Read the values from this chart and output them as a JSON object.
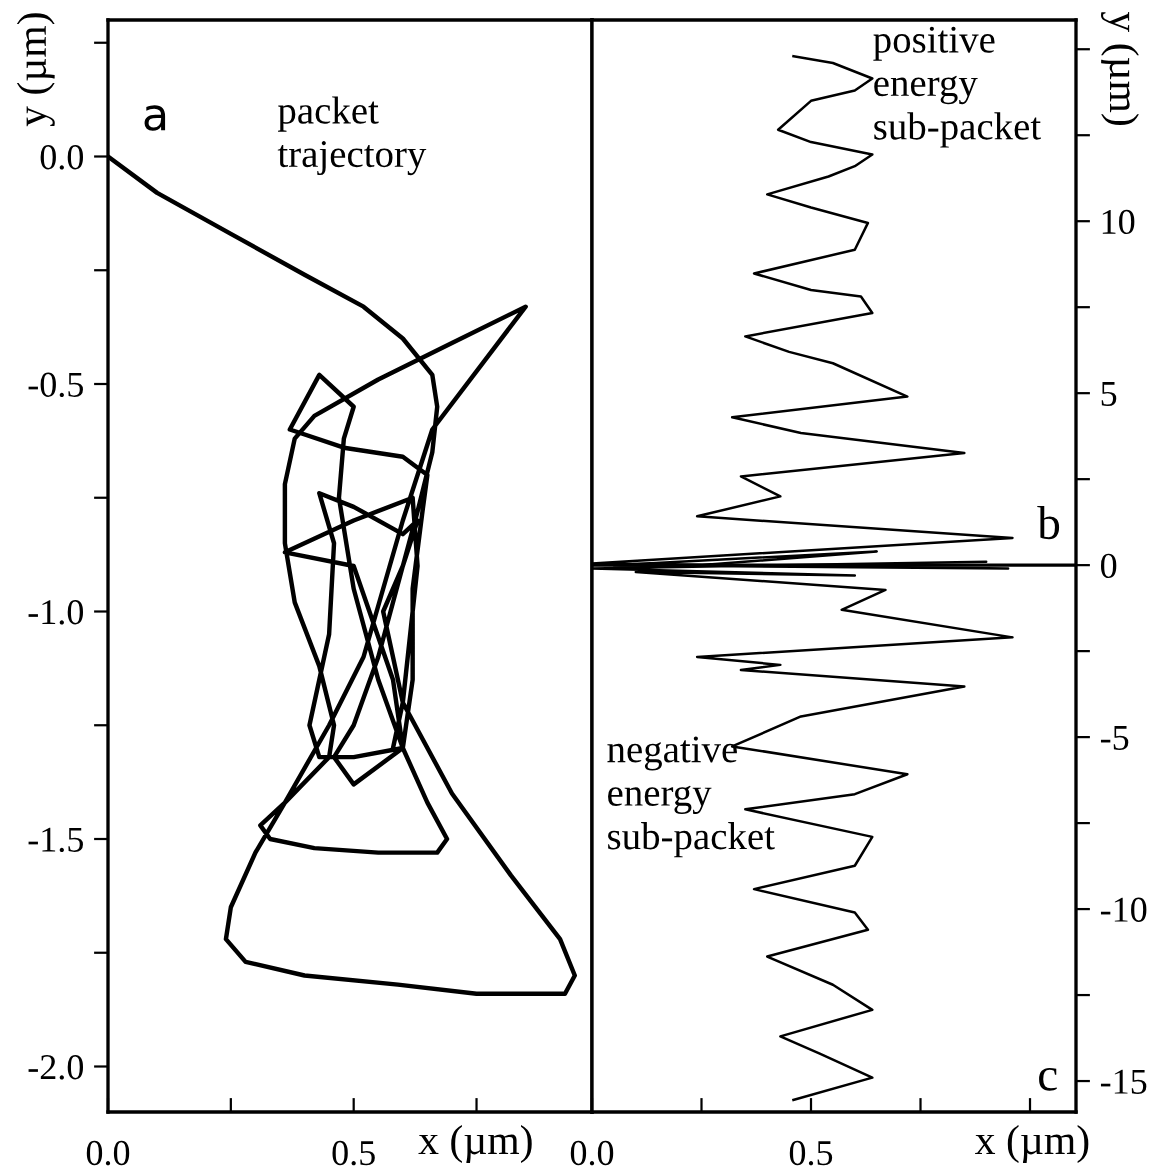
{
  "chart_data": [
    {
      "type": "line",
      "xlabel": "x (µm)",
      "ylabel": "y (µm)",
      "xlim": [
        0,
        0.985
      ],
      "ylim": [
        -2.1,
        0.3
      ],
      "xticks": [
        {
          "value": 0.0,
          "label": "0.0"
        },
        {
          "value": 0.25,
          "label": null
        },
        {
          "value": 0.5,
          "label": "0.5"
        },
        {
          "value": 0.75,
          "label": null
        }
      ],
      "yticks": [
        {
          "value": -2.0,
          "label": "-2.0"
        },
        {
          "value": -1.75,
          "label": null
        },
        {
          "value": -1.5,
          "label": "-1.5"
        },
        {
          "value": -1.25,
          "label": null
        },
        {
          "value": -1.0,
          "label": "-1.0"
        },
        {
          "value": -0.75,
          "label": null
        },
        {
          "value": -0.5,
          "label": "-0.5"
        },
        {
          "value": -0.25,
          "label": null
        },
        {
          "value": 0.0,
          "label": "0.0"
        },
        {
          "value": 0.25,
          "label": null
        }
      ],
      "annotations": [
        "a",
        "packet\ntrajectory"
      ],
      "series": [
        {
          "color": "#000000",
          "x": [
            0,
            0.1,
            0.25,
            0.4,
            0.52,
            0.6,
            0.66,
            0.67,
            0.66,
            0.63,
            0.6,
            0.56,
            0.6,
            0.7,
            0.82,
            0.92,
            0.95,
            0.93,
            0.75,
            0.59,
            0.4,
            0.28,
            0.24,
            0.25,
            0.3,
            0.36,
            0.45,
            0.52,
            0.56,
            0.6,
            0.66,
            0.85,
            0.7,
            0.55,
            0.42,
            0.38,
            0.36,
            0.36,
            0.38,
            0.43,
            0.46,
            0.45,
            0.36,
            0.31,
            0.33,
            0.42,
            0.55,
            0.67,
            0.69,
            0.65,
            0.6,
            0.55,
            0.5,
            0.47,
            0.48,
            0.5,
            0.43,
            0.37,
            0.48,
            0.6,
            0.65,
            0.64,
            0.62,
            0.62,
            0.6,
            0.5,
            0.43,
            0.41,
            0.45,
            0.46,
            0.43,
            0.5,
            0.6,
            0.63,
            0.6,
            0.55,
            0.5,
            0.46,
            0.5,
            0.6,
            0.58,
            0.5,
            0.36,
            0.5,
            0.62,
            0.63,
            0.6,
            0.58
          ],
          "values": [
            0,
            -0.08,
            -0.17,
            -0.26,
            -0.33,
            -0.4,
            -0.48,
            -0.55,
            -0.65,
            -0.78,
            -0.9,
            -1.0,
            -1.2,
            -1.4,
            -1.58,
            -1.72,
            -1.8,
            -1.84,
            -1.84,
            -1.82,
            -1.8,
            -1.77,
            -1.72,
            -1.65,
            -1.53,
            -1.42,
            -1.25,
            -1.1,
            -0.95,
            -0.8,
            -0.6,
            -0.33,
            -0.41,
            -0.49,
            -0.57,
            -0.62,
            -0.72,
            -0.85,
            -0.98,
            -1.12,
            -1.25,
            -1.32,
            -1.42,
            -1.47,
            -1.5,
            -1.52,
            -1.53,
            -1.53,
            -1.5,
            -1.42,
            -1.3,
            -1.15,
            -0.95,
            -0.75,
            -0.62,
            -0.55,
            -0.48,
            -0.6,
            -0.64,
            -0.66,
            -0.7,
            -0.78,
            -0.95,
            -1.15,
            -1.3,
            -1.32,
            -1.32,
            -1.25,
            -1.05,
            -0.85,
            -0.74,
            -0.77,
            -0.83,
            -0.8,
            -0.9,
            -1.1,
            -1.25,
            -1.32,
            -1.38,
            -1.3,
            -1.15,
            -0.9,
            -0.87,
            -0.8,
            -0.75,
            -0.9,
            -1.2,
            -1.3
          ]
        }
      ]
    },
    {
      "type": "line",
      "xlabel": "x (µm)",
      "ylabel": "y (µm)",
      "xlim": [
        0,
        1.105
      ],
      "ylim": [
        -15.9,
        15.85
      ],
      "xticks": [
        {
          "value": 0.0,
          "label": "0.0"
        },
        {
          "value": 0.25,
          "label": null
        },
        {
          "value": 0.5,
          "label": "0.5"
        },
        {
          "value": 0.75,
          "label": null
        },
        {
          "value": 1.0,
          "label": null
        }
      ],
      "yticks": [
        {
          "value": -15,
          "label": "-15"
        },
        {
          "value": -12.5,
          "label": null
        },
        {
          "value": -10,
          "label": "-10"
        },
        {
          "value": -7.5,
          "label": null
        },
        {
          "value": -5,
          "label": "-5"
        },
        {
          "value": -2.5,
          "label": null
        },
        {
          "value": 0,
          "label": "0"
        },
        {
          "value": 2.5,
          "label": null
        },
        {
          "value": 5,
          "label": "5"
        },
        {
          "value": 7.5,
          "label": null
        },
        {
          "value": 10,
          "label": "10"
        },
        {
          "value": 12.5,
          "label": null
        },
        {
          "value": 15,
          "label": null
        }
      ],
      "ref_lines": [
        {
          "axis": "y",
          "value": 0,
          "color": "#000000"
        }
      ],
      "annotations": [
        "positive\nenergy\nsub-packet",
        "b",
        "negative\nenergy\nsub-packet",
        "c"
      ],
      "series": [
        {
          "color": "#000000",
          "x": [
            0.46,
            0.55,
            0.64,
            0.6,
            0.5,
            0.425,
            0.5,
            0.64,
            0.6,
            0.54,
            0.4,
            0.5,
            0.63,
            0.6,
            0.37,
            0.5,
            0.614,
            0.64,
            0.35,
            0.45,
            0.55,
            0.72,
            0.32,
            0.477,
            0.85,
            0.34,
            0.43,
            0.24,
            0.96,
            0.0,
            0.95,
            0.05,
            0.65,
            0.2,
            0.9,
            0.0,
            0.6,
            0.1,
            0.67,
            0.57,
            0.96,
            0.24,
            0.43,
            0.34,
            0.85,
            0.477,
            0.32,
            0.72,
            0.6,
            0.35,
            0.64,
            0.6,
            0.37,
            0.6,
            0.63,
            0.4,
            0.55,
            0.64,
            0.43,
            0.52,
            0.64,
            0.46
          ],
          "values": [
            14.8,
            14.6,
            14.15,
            13.8,
            13.5,
            12.66,
            12.3,
            11.94,
            11.6,
            11.3,
            10.78,
            10.4,
            9.95,
            9.17,
            8.48,
            8.0,
            7.81,
            7.33,
            6.65,
            6.2,
            5.87,
            4.9,
            4.3,
            3.84,
            3.26,
            2.58,
            2.0,
            1.42,
            0.79,
            0.05,
            -0.1,
            0.0,
            0.4,
            -0.05,
            0.1,
            -0.1,
            -0.3,
            -0.2,
            -0.72,
            -1.3,
            -2.1,
            -2.67,
            -2.9,
            -3.05,
            -3.53,
            -4.4,
            -5.27,
            -6.08,
            -6.66,
            -7.1,
            -7.9,
            -8.74,
            -9.42,
            -10.1,
            -10.6,
            -11.38,
            -12.2,
            -12.93,
            -13.7,
            -14.2,
            -14.9,
            -15.55
          ]
        }
      ]
    }
  ]
}
